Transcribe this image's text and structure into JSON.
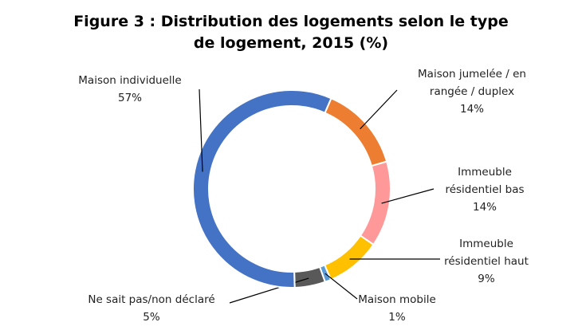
{
  "chart_data": {
    "type": "donut",
    "title": "Figure 3 : Distribution des logements selon le type de logement, 2015 (%)",
    "categories": [
      "Maison jumelée / en rangée / duplex",
      "Immeuble résidentiel bas",
      "Immeuble résidentiel haut",
      "Maison mobile",
      "Ne sait pas/non déclaré",
      "Maison individuelle"
    ],
    "values": [
      14,
      14,
      9,
      1,
      5,
      57
    ],
    "value_labels": [
      "14%",
      "14%",
      "9%",
      "1%",
      "5%",
      "57%"
    ],
    "colors": [
      "#ed7d31",
      "#ff9999",
      "#ffc000",
      "#5b9bd5",
      "#595959",
      "#4472c4"
    ]
  }
}
